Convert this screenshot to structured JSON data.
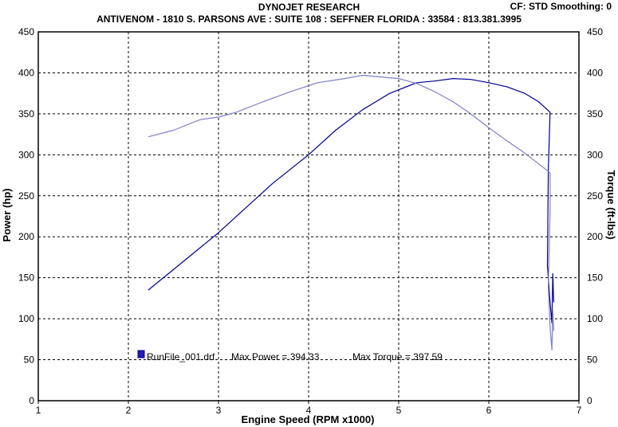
{
  "chart_data": {
    "type": "line",
    "title": "DYNOJET RESEARCH",
    "subtitle": "ANTIVENOM - 1810 S. PARSONS AVE : SUITE 108 : SEFFNER FLORIDA : 33584 : 813.381.3995",
    "corner_info": "CF: STD  Smoothing: 0",
    "xlabel": "Engine Speed (RPM x1000)",
    "ylabel_left": "Power (hp)",
    "ylabel_right": "Torque (ft-lbs)",
    "xlim": [
      1,
      7
    ],
    "ylim": [
      0,
      450
    ],
    "x_ticks": [
      "1",
      "2",
      "3",
      "4",
      "5",
      "6",
      "7"
    ],
    "y_ticks": [
      "0",
      "50",
      "100",
      "150",
      "200",
      "250",
      "300",
      "350",
      "400",
      "450"
    ],
    "grid": true,
    "legend": {
      "run_label": "RunFile_001.drf",
      "max_power_text": "Max Power = 394.33",
      "max_torque_text": "Max Torque = 397.59"
    },
    "series": [
      {
        "key": "power",
        "color": "#00008c",
        "points": [
          [
            2.22,
            135
          ],
          [
            2.5,
            160
          ],
          [
            2.8,
            187
          ],
          [
            3.0,
            205
          ],
          [
            3.3,
            235
          ],
          [
            3.6,
            265
          ],
          [
            4.0,
            300
          ],
          [
            4.3,
            330
          ],
          [
            4.6,
            355
          ],
          [
            4.9,
            375
          ],
          [
            5.2,
            388
          ],
          [
            5.4,
            390
          ],
          [
            5.6,
            393
          ],
          [
            5.8,
            392
          ],
          [
            6.0,
            388
          ],
          [
            6.2,
            383
          ],
          [
            6.4,
            375
          ],
          [
            6.55,
            365
          ],
          [
            6.68,
            352
          ],
          [
            6.66,
            280
          ],
          [
            6.65,
            165
          ],
          [
            6.68,
            120
          ],
          [
            6.7,
            95
          ],
          [
            6.71,
            155
          ],
          [
            6.72,
            120
          ]
        ]
      },
      {
        "key": "torque",
        "color": "#7f7fc8",
        "points": [
          [
            2.22,
            322
          ],
          [
            2.5,
            330
          ],
          [
            2.8,
            343
          ],
          [
            3.0,
            346
          ],
          [
            3.2,
            352
          ],
          [
            3.5,
            365
          ],
          [
            3.8,
            377
          ],
          [
            4.1,
            388
          ],
          [
            4.4,
            393
          ],
          [
            4.6,
            397
          ],
          [
            4.8,
            395
          ],
          [
            5.0,
            393
          ],
          [
            5.2,
            387
          ],
          [
            5.4,
            377
          ],
          [
            5.6,
            365
          ],
          [
            5.8,
            350
          ],
          [
            6.0,
            333
          ],
          [
            6.2,
            317
          ],
          [
            6.4,
            302
          ],
          [
            6.6,
            285
          ],
          [
            6.68,
            278
          ],
          [
            6.68,
            230
          ],
          [
            6.66,
            140
          ],
          [
            6.68,
            90
          ],
          [
            6.7,
            62
          ],
          [
            6.71,
            110
          ],
          [
            6.72,
            85
          ]
        ]
      }
    ]
  }
}
